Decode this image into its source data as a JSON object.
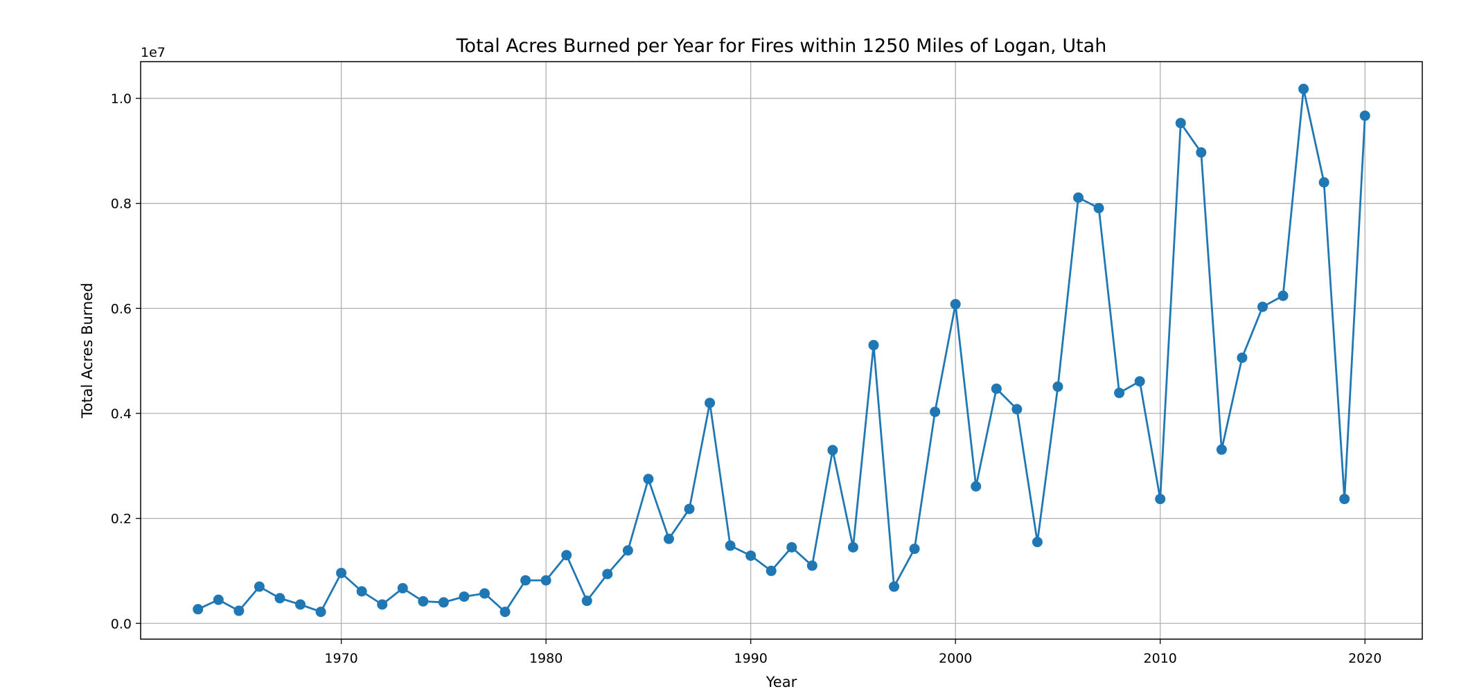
{
  "chart_data": {
    "type": "line",
    "title": "Total Acres Burned per Year for Fires within 1250 Miles of Logan, Utah",
    "xlabel": "Year",
    "ylabel": "Total Acres Burned",
    "y_offset_label": "1e7",
    "xlim": [
      1960.2,
      2022.8
    ],
    "ylim": [
      -0.03,
      1.07
    ],
    "grid": true,
    "line_color": "#1f77b4",
    "marker": "circle",
    "x_ticks": [
      {
        "value": 1970,
        "label": "1970"
      },
      {
        "value": 1980,
        "label": "1980"
      },
      {
        "value": 1990,
        "label": "1990"
      },
      {
        "value": 2000,
        "label": "2000"
      },
      {
        "value": 2010,
        "label": "2010"
      },
      {
        "value": 2020,
        "label": "2020"
      }
    ],
    "y_ticks": [
      {
        "value": 0.0,
        "label": "0.0"
      },
      {
        "value": 0.2,
        "label": "0.2"
      },
      {
        "value": 0.4,
        "label": "0.4"
      },
      {
        "value": 0.6,
        "label": "0.6"
      },
      {
        "value": 0.8,
        "label": "0.8"
      },
      {
        "value": 1.0,
        "label": "1.0"
      }
    ],
    "series": [
      {
        "x": [
          1963,
          1964,
          1965,
          1966,
          1967,
          1968,
          1969,
          1970,
          1971,
          1972,
          1973,
          1974,
          1975,
          1976,
          1977,
          1978,
          1979,
          1980,
          1981,
          1982,
          1983,
          1984,
          1985,
          1986,
          1987,
          1988,
          1989,
          1990,
          1991,
          1992,
          1993,
          1994,
          1995,
          1996,
          1997,
          1998,
          1999,
          2000,
          2001,
          2002,
          2003,
          2004,
          2005,
          2006,
          2007,
          2008,
          2009,
          2010,
          2011,
          2012,
          2013,
          2014,
          2015,
          2016,
          2017,
          2018,
          2019,
          2020
        ],
        "values": [
          0.027,
          0.045,
          0.024,
          0.07,
          0.048,
          0.036,
          0.022,
          0.096,
          0.061,
          0.036,
          0.067,
          0.042,
          0.04,
          0.051,
          0.057,
          0.022,
          0.082,
          0.082,
          0.13,
          0.043,
          0.094,
          0.139,
          0.275,
          0.161,
          0.218,
          0.42,
          0.148,
          0.129,
          0.1,
          0.145,
          0.11,
          0.33,
          0.145,
          0.53,
          0.07,
          0.142,
          0.403,
          0.608,
          0.261,
          0.447,
          0.408,
          0.155,
          0.451,
          0.811,
          0.791,
          0.439,
          0.461,
          0.237,
          0.953,
          0.897,
          0.331,
          0.506,
          0.603,
          0.624,
          1.018,
          0.84,
          0.237,
          0.967
        ]
      }
    ]
  }
}
